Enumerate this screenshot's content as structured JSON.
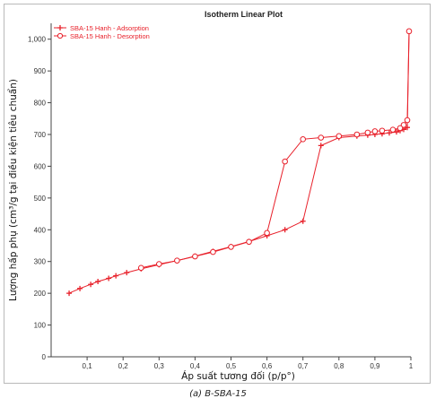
{
  "caption": "(a) B-SBA-15",
  "chart_data": {
    "type": "line",
    "title": "Isotherm Linear Plot",
    "xlabel": "Áp suất tương đối (p/p°)",
    "ylabel": "Lượng hấp phụ (cm³/g tại điều kiện tiêu chuẩn)",
    "xlim": [
      0,
      1
    ],
    "ylim": [
      0,
      1050
    ],
    "x_ticks": [
      0.1,
      0.2,
      0.3,
      0.4,
      0.5,
      0.6,
      0.7,
      0.8,
      0.9,
      1
    ],
    "x_tick_labels": [
      "0,1",
      "0,2",
      "0,3",
      "0,4",
      "0,5",
      "0,6",
      "0,7",
      "0,8",
      "0,9",
      "1"
    ],
    "y_ticks": [
      0,
      100,
      200,
      300,
      400,
      500,
      600,
      700,
      800,
      900,
      1000
    ],
    "y_tick_labels": [
      "0",
      "100",
      "200",
      "300",
      "400",
      "500",
      "600",
      "700",
      "800",
      "900",
      "1,000"
    ],
    "grid": false,
    "legend_position": "top-left",
    "series": [
      {
        "name": "SBA-15 Hanh - Adsorption",
        "color": "#e8202a",
        "marker": "plus",
        "x": [
          0.05,
          0.08,
          0.11,
          0.13,
          0.16,
          0.18,
          0.21,
          0.25,
          0.3,
          0.35,
          0.4,
          0.45,
          0.5,
          0.55,
          0.6,
          0.65,
          0.7,
          0.75,
          0.8,
          0.85,
          0.88,
          0.9,
          0.92,
          0.94,
          0.96,
          0.97,
          0.98,
          0.99,
          0.995
        ],
        "y": [
          200,
          215,
          228,
          237,
          247,
          255,
          265,
          277,
          290,
          303,
          317,
          332,
          347,
          363,
          381,
          400,
          427,
          665,
          690,
          695,
          698,
          700,
          702,
          705,
          708,
          712,
          716,
          722,
          1025
        ]
      },
      {
        "name": "SBA-15 Hanh - Desorption",
        "color": "#e8202a",
        "marker": "circle",
        "x": [
          0.995,
          0.99,
          0.98,
          0.97,
          0.95,
          0.92,
          0.9,
          0.88,
          0.85,
          0.8,
          0.75,
          0.7,
          0.65,
          0.6,
          0.55,
          0.5,
          0.45,
          0.4,
          0.35,
          0.3,
          0.25
        ],
        "y": [
          1025,
          745,
          730,
          720,
          715,
          712,
          710,
          706,
          700,
          695,
          690,
          685,
          615,
          390,
          362,
          346,
          330,
          316,
          303,
          292,
          280
        ]
      }
    ]
  }
}
